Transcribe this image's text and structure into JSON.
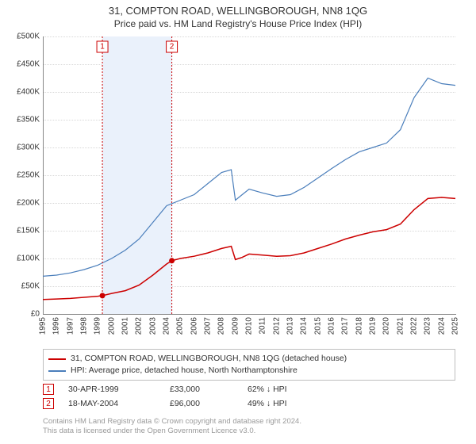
{
  "title": "31, COMPTON ROAD, WELLINGBOROUGH, NN8 1QG",
  "subtitle": "Price paid vs. HM Land Registry's House Price Index (HPI)",
  "chart": {
    "type": "line",
    "background_color": "#ffffff",
    "grid_color": "#d8d8d8",
    "shaded_range_color": "#eaf1fb",
    "shaded_range_years": [
      1999.33,
      2004.38
    ],
    "x_years": [
      1995,
      1996,
      1997,
      1998,
      1999,
      2000,
      2001,
      2002,
      2003,
      2004,
      2005,
      2006,
      2007,
      2008,
      2009,
      2010,
      2011,
      2012,
      2013,
      2014,
      2015,
      2016,
      2017,
      2018,
      2019,
      2020,
      2021,
      2022,
      2023,
      2024,
      2025
    ],
    "xlim": [
      1995,
      2025
    ],
    "ylim": [
      0,
      500000
    ],
    "ytick_step": 50000,
    "ytick_prefix": "£",
    "ytick_suffix": "K",
    "ytick_labels": [
      "£0",
      "£50K",
      "£100K",
      "£150K",
      "£200K",
      "£250K",
      "£300K",
      "£350K",
      "£400K",
      "£450K",
      "£500K"
    ],
    "tick_fontsize": 10,
    "title_fontsize": 13,
    "subtitle_fontsize": 12,
    "series": [
      {
        "name": "price_paid",
        "label": "31, COMPTON ROAD, WELLINGBOROUGH, NN8 1QG (detached house)",
        "color": "#cc0000",
        "line_width": 1.5,
        "x": [
          1995,
          1996,
          1997,
          1998,
          1999,
          1999.33,
          2000,
          2001,
          2002,
          2003,
          2004,
          2004.38,
          2005,
          2006,
          2007,
          2008,
          2008.7,
          2009,
          2009.5,
          2010,
          2011,
          2012,
          2013,
          2014,
          2015,
          2016,
          2017,
          2018,
          2019,
          2020,
          2021,
          2022,
          2023,
          2024,
          2025
        ],
        "y": [
          26000,
          27000,
          28000,
          30000,
          32000,
          33000,
          37000,
          42000,
          52000,
          70000,
          90000,
          96000,
          100000,
          104000,
          110000,
          118000,
          122000,
          98000,
          102000,
          108000,
          106000,
          104000,
          105000,
          110000,
          118000,
          126000,
          135000,
          142000,
          148000,
          152000,
          162000,
          188000,
          208000,
          210000,
          208000
        ]
      },
      {
        "name": "hpi",
        "label": "HPI: Average price, detached house, North Northamptonshire",
        "color": "#4a7ebb",
        "line_width": 1.2,
        "x": [
          1995,
          1996,
          1997,
          1998,
          1999,
          2000,
          2001,
          2002,
          2003,
          2004,
          2005,
          2006,
          2007,
          2008,
          2008.7,
          2009,
          2009.5,
          2010,
          2011,
          2012,
          2013,
          2014,
          2015,
          2016,
          2017,
          2018,
          2019,
          2020,
          2021,
          2022,
          2023,
          2024,
          2025
        ],
        "y": [
          68000,
          70000,
          74000,
          80000,
          88000,
          100000,
          115000,
          135000,
          165000,
          195000,
          205000,
          215000,
          235000,
          255000,
          260000,
          205000,
          215000,
          225000,
          218000,
          212000,
          215000,
          228000,
          245000,
          262000,
          278000,
          292000,
          300000,
          308000,
          332000,
          390000,
          425000,
          415000,
          412000
        ]
      }
    ],
    "sales": [
      {
        "n": "1",
        "year": 1999.33,
        "date": "30-APR-1999",
        "price": "£33,000",
        "pct": "62% ↓ HPI",
        "color": "#cc0000",
        "y_value": 33000
      },
      {
        "n": "2",
        "year": 2004.38,
        "date": "18-MAY-2004",
        "price": "£96,000",
        "pct": "49% ↓ HPI",
        "color": "#cc0000",
        "y_value": 96000
      }
    ]
  },
  "legend": {
    "border_color": "#bfbfbf",
    "fontsize": 10.5
  },
  "attribution": {
    "line1": "Contains HM Land Registry data © Crown copyright and database right 2024.",
    "line2": "This data is licensed under the Open Government Licence v3.0.",
    "color": "#9a9a9a",
    "fontsize": 9.5
  }
}
